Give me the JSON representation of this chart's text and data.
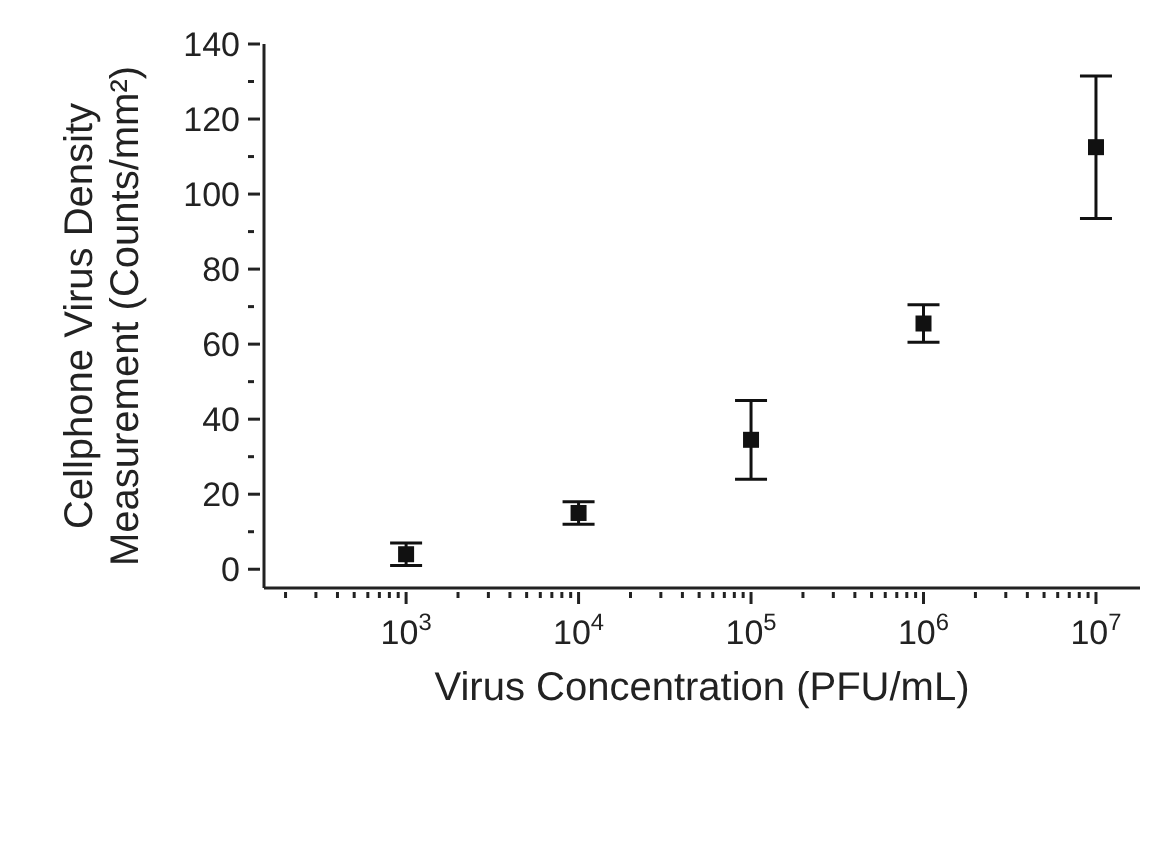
{
  "chart_data": {
    "type": "scatter",
    "xlabel": "Virus Concentration (PFU/mL)",
    "ylabel": "Cellphone Virus Density\nMeasurement (Counts/mm²)",
    "x": [
      1000,
      10000,
      100000,
      1000000,
      10000000
    ],
    "series": [
      {
        "color": "#111111",
        "values": [
          4,
          15,
          34.5,
          65.5,
          112.5
        ],
        "errors": [
          3,
          3,
          10.5,
          5,
          19
        ]
      }
    ],
    "log": "x",
    "marker": "square",
    "grid": false,
    "legend": false,
    "xlim": [
      150,
      18000000
    ],
    "xticks": [
      {
        "value": 200,
        "label": null
      },
      {
        "value": 300,
        "label": null
      },
      {
        "value": 400,
        "label": null
      },
      {
        "value": 500,
        "label": null
      },
      {
        "value": 600,
        "label": null
      },
      {
        "value": 700,
        "label": null
      },
      {
        "value": 800,
        "label": null
      },
      {
        "value": 900,
        "label": null
      },
      {
        "value": 1000,
        "label": "10$^{3}$"
      },
      {
        "value": 2000,
        "label": null
      },
      {
        "value": 3000,
        "label": null
      },
      {
        "value": 4000,
        "label": null
      },
      {
        "value": 5000,
        "label": null
      },
      {
        "value": 6000,
        "label": null
      },
      {
        "value": 7000,
        "label": null
      },
      {
        "value": 8000,
        "label": null
      },
      {
        "value": 9000,
        "label": null
      },
      {
        "value": 10000,
        "label": "10$^{4}$"
      },
      {
        "value": 20000,
        "label": null
      },
      {
        "value": 30000,
        "label": null
      },
      {
        "value": 40000,
        "label": null
      },
      {
        "value": 50000,
        "label": null
      },
      {
        "value": 60000,
        "label": null
      },
      {
        "value": 70000,
        "label": null
      },
      {
        "value": 80000,
        "label": null
      },
      {
        "value": 90000,
        "label": null
      },
      {
        "value": 100000,
        "label": "10$^{5}$"
      },
      {
        "value": 200000,
        "label": null
      },
      {
        "value": 300000,
        "label": null
      },
      {
        "value": 400000,
        "label": null
      },
      {
        "value": 500000,
        "label": null
      },
      {
        "value": 600000,
        "label": null
      },
      {
        "value": 700000,
        "label": null
      },
      {
        "value": 800000,
        "label": null
      },
      {
        "value": 900000,
        "label": null
      },
      {
        "value": 1000000,
        "label": "10$^{6}$"
      },
      {
        "value": 2000000,
        "label": null
      },
      {
        "value": 3000000,
        "label": null
      },
      {
        "value": 4000000,
        "label": null
      },
      {
        "value": 5000000,
        "label": null
      },
      {
        "value": 6000000,
        "label": null
      },
      {
        "value": 7000000,
        "label": null
      },
      {
        "value": 8000000,
        "label": null
      },
      {
        "value": 9000000,
        "label": null
      },
      {
        "value": 10000000,
        "label": "10$^{7}$"
      }
    ],
    "ylim": [
      -5,
      140
    ],
    "yticks": [
      0,
      {
        "value": 10,
        "label": null
      },
      20,
      {
        "value": 30,
        "label": null
      },
      40,
      {
        "value": 50,
        "label": null
      },
      60,
      {
        "value": 70,
        "label": null
      },
      80,
      {
        "value": 90,
        "label": null
      },
      100,
      {
        "value": 110,
        "label": null
      },
      120,
      {
        "value": 130,
        "label": null
      },
      140
    ]
  }
}
